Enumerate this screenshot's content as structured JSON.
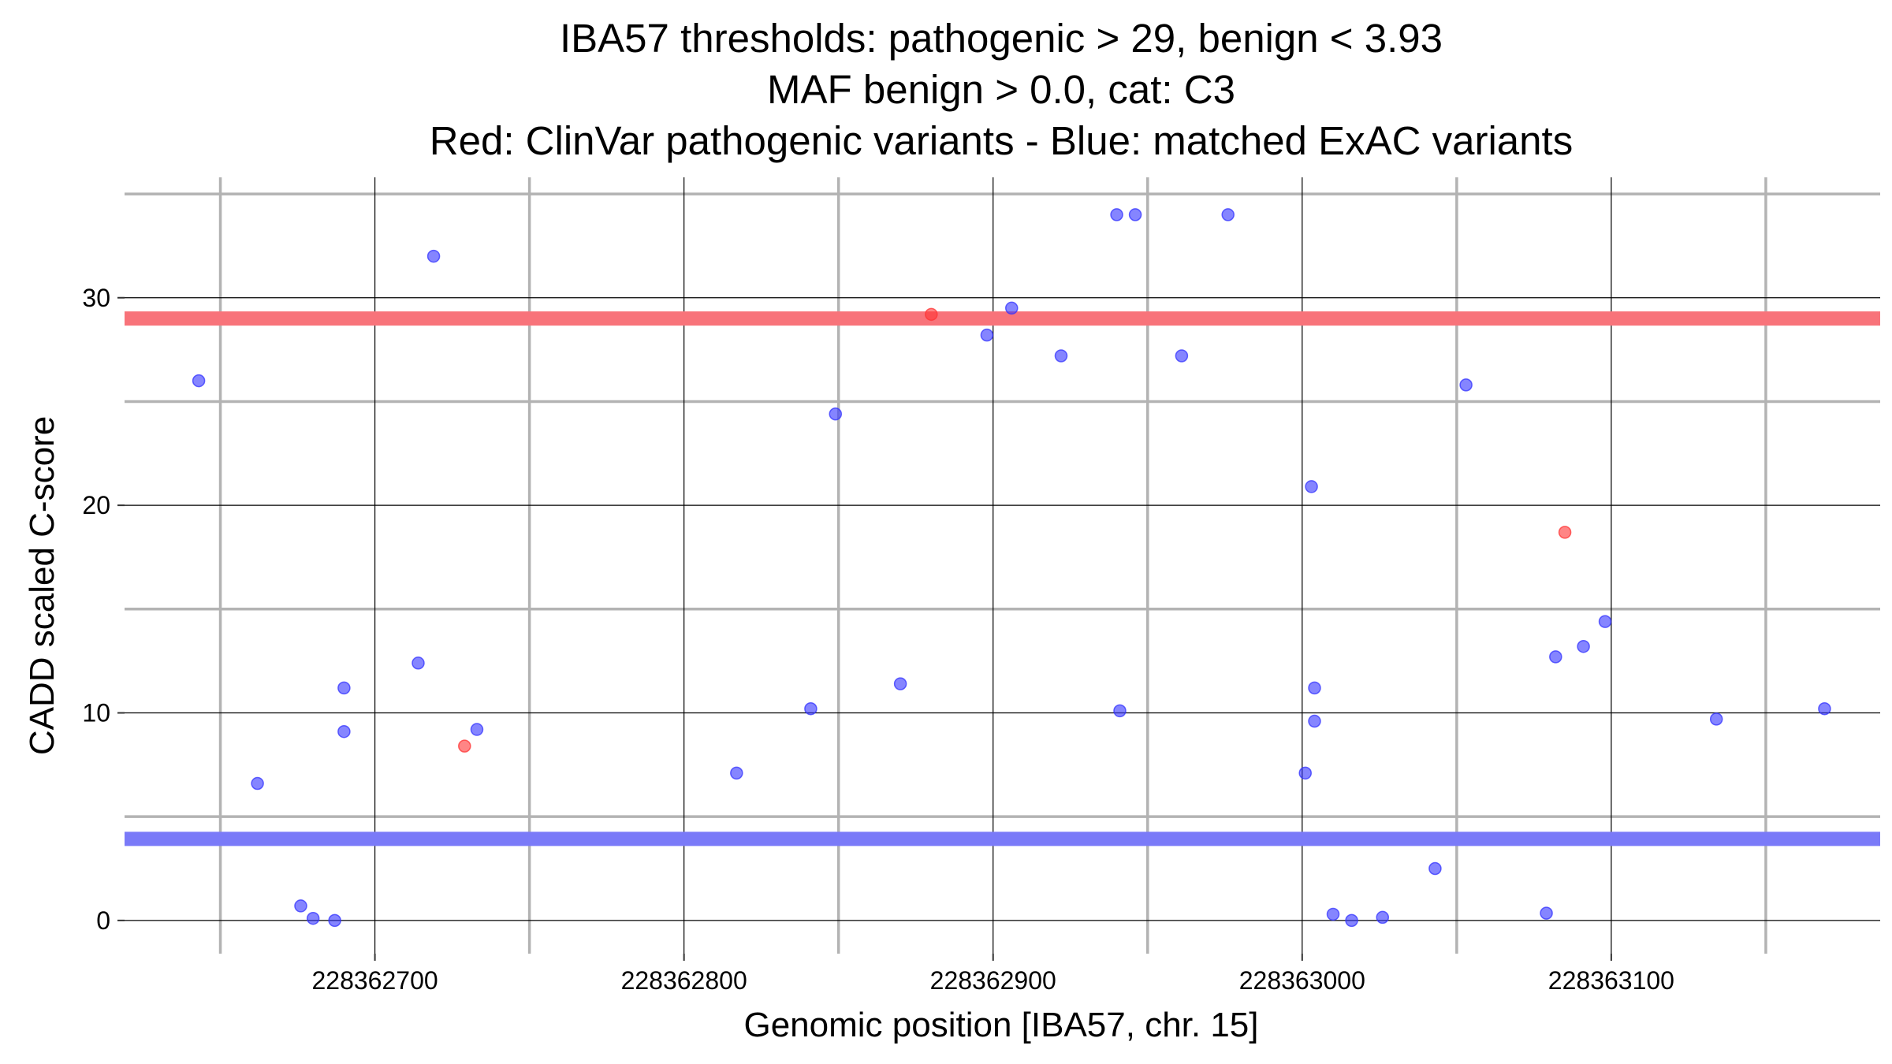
{
  "chart_data": {
    "type": "scatter",
    "title_lines": [
      "IBA57 thresholds: pathogenic > 29, benign < 3.93",
      "MAF benign > 0.0, cat: C3",
      "Red: ClinVar pathogenic variants - Blue: matched ExAC variants"
    ],
    "xlabel": "Genomic position [IBA57, chr. 15]",
    "ylabel": "CADD scaled C-score",
    "xlim": [
      228362619,
      228363187
    ],
    "ylim": [
      -1.6,
      35.8
    ],
    "x_major_ticks": [
      228362700,
      228362800,
      228362900,
      228363000,
      228363100
    ],
    "x_tick_labels": [
      "228362700",
      "228362800",
      "228362900",
      "228363000",
      "228363100"
    ],
    "x_minor_ticks": [
      228362650,
      228362750,
      228362850,
      228362950,
      228363050,
      228363150
    ],
    "y_major_ticks": [
      0,
      10,
      20,
      30
    ],
    "y_tick_labels": [
      "0",
      "10",
      "20",
      "30"
    ],
    "y_minor_ticks": [
      5,
      15,
      25,
      35
    ],
    "grid": true,
    "thresholds": [
      {
        "value": 29,
        "color": "#f8737a"
      },
      {
        "value": 3.93,
        "color": "#7a7af8"
      }
    ],
    "colors": {
      "pathogenic": "#ff3333",
      "benign": "#3333ff"
    },
    "series": [
      {
        "key": "pathogenic",
        "points": [
          [
            228362880,
            29.2
          ],
          [
            228362729,
            8.4
          ],
          [
            228363085,
            18.7
          ]
        ]
      },
      {
        "key": "benign",
        "points": [
          [
            228362643,
            26.0
          ],
          [
            228362662,
            6.6
          ],
          [
            228362676,
            0.7
          ],
          [
            228362680,
            0.1
          ],
          [
            228362687,
            0.0
          ],
          [
            228362690,
            11.2
          ],
          [
            228362690,
            9.1
          ],
          [
            228362714,
            12.4
          ],
          [
            228362719,
            32.0
          ],
          [
            228362733,
            9.2
          ],
          [
            228362817,
            7.1
          ],
          [
            228362841,
            10.2
          ],
          [
            228362849,
            24.4
          ],
          [
            228362870,
            11.4
          ],
          [
            228362898,
            28.2
          ],
          [
            228362906,
            29.5
          ],
          [
            228362922,
            27.2
          ],
          [
            228362940,
            34.0
          ],
          [
            228362946,
            34.0
          ],
          [
            228362941,
            10.1
          ],
          [
            228362961,
            27.2
          ],
          [
            228362976,
            34.0
          ],
          [
            228363001,
            7.1
          ],
          [
            228363003,
            20.9
          ],
          [
            228363004,
            11.2
          ],
          [
            228363004,
            9.6
          ],
          [
            228363010,
            0.3
          ],
          [
            228363016,
            0.0
          ],
          [
            228363026,
            0.15
          ],
          [
            228363043,
            2.5
          ],
          [
            228363053,
            25.8
          ],
          [
            228363079,
            0.35
          ],
          [
            228363082,
            12.7
          ],
          [
            228363091,
            13.2
          ],
          [
            228363098,
            14.4
          ],
          [
            228363134,
            9.7
          ],
          [
            228363169,
            10.2
          ]
        ]
      }
    ]
  }
}
